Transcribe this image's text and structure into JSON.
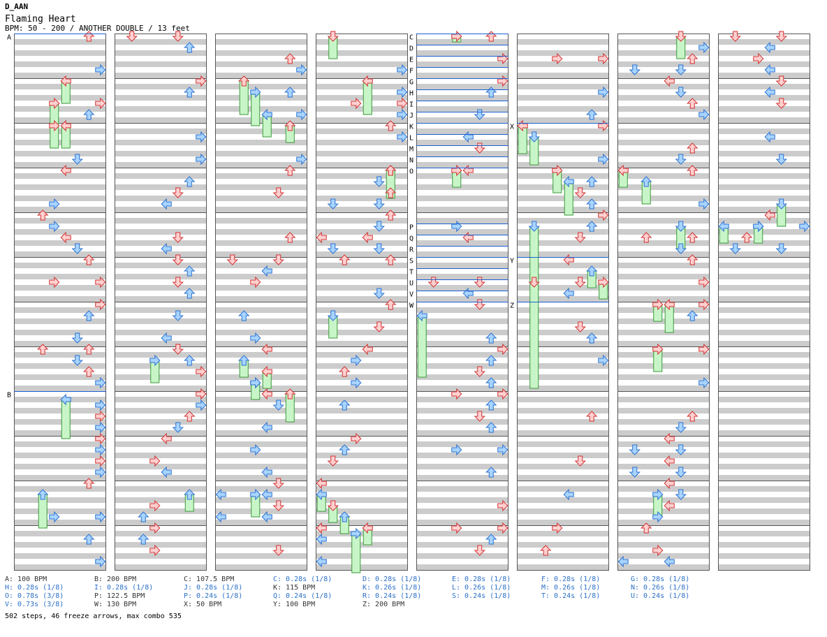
{
  "header": {
    "user": "D_AAN",
    "title": "Flaming Heart",
    "info": "BPM: 50 - 200 / ANOTHER DOUBLE / 13 feet"
  },
  "chart_meta": {
    "columns": 8,
    "measures_per_column": 12,
    "lanes": 8,
    "colors": {
      "red_fill": "#ffd0d0",
      "red_stroke": "#d03030",
      "blue_fill": "#a8d4ff",
      "blue_stroke": "#2a70d0",
      "freeze_fill": "#c8f5c8",
      "freeze_stroke": "#3a9a3a",
      "stripe": "#cccccc",
      "line": "#1a5fd0",
      "pink": "#ff66ff"
    }
  },
  "markers": [
    {
      "label": "A",
      "col": 0,
      "row": 0
    },
    {
      "label": "B",
      "col": 0,
      "row": 64
    },
    {
      "label": "C",
      "col": 4,
      "row": 0,
      "lane": 0
    },
    {
      "label": "D",
      "col": 4,
      "row": 2,
      "lane": 0
    },
    {
      "label": "E",
      "col": 4,
      "row": 4,
      "lane": 0
    },
    {
      "label": "F",
      "col": 4,
      "row": 6,
      "lane": 0
    },
    {
      "label": "G",
      "col": 4,
      "row": 8,
      "lane": 0
    },
    {
      "label": "H",
      "col": 4,
      "row": 10,
      "lane": 0
    },
    {
      "label": "I",
      "col": 4,
      "row": 12,
      "lane": 0
    },
    {
      "label": "J",
      "col": 4,
      "row": 14,
      "lane": 0
    },
    {
      "label": "K",
      "col": 4,
      "row": 16,
      "lane": 0
    },
    {
      "label": "L",
      "col": 4,
      "row": 18,
      "lane": 0
    },
    {
      "label": "M",
      "col": 4,
      "row": 20,
      "lane": 0
    },
    {
      "label": "N",
      "col": 4,
      "row": 22,
      "lane": 0
    },
    {
      "label": "O",
      "col": 4,
      "row": 24,
      "lane": 0
    },
    {
      "label": "P",
      "col": 4,
      "row": 34,
      "lane": 0
    },
    {
      "label": "Q",
      "col": 4,
      "row": 36,
      "lane": 0
    },
    {
      "label": "R",
      "col": 4,
      "row": 38,
      "lane": 0
    },
    {
      "label": "S",
      "col": 4,
      "row": 40,
      "lane": 0
    },
    {
      "label": "T",
      "col": 4,
      "row": 42,
      "lane": 0
    },
    {
      "label": "U",
      "col": 4,
      "row": 44,
      "lane": 0
    },
    {
      "label": "V",
      "col": 4,
      "row": 46,
      "lane": 0
    },
    {
      "label": "W",
      "col": 4,
      "row": 48,
      "lane": 0
    },
    {
      "label": "X",
      "col": 5,
      "row": 16
    },
    {
      "label": "Y",
      "col": 5,
      "row": 40
    },
    {
      "label": "Z",
      "col": 5,
      "row": 48
    }
  ],
  "legend": [
    {
      "text": "A: 100 BPM",
      "kind": "bpm"
    },
    {
      "text": "B: 200 BPM",
      "kind": "bpm"
    },
    {
      "text": "C: 107.5 BPM",
      "kind": "bpm"
    },
    {
      "text": "C: 0.28s (1/8)",
      "kind": "stop"
    },
    {
      "text": "D: 0.28s (1/8)",
      "kind": "stop"
    },
    {
      "text": "E: 0.28s (1/8)",
      "kind": "stop"
    },
    {
      "text": "F: 0.28s (1/8)",
      "kind": "stop"
    },
    {
      "text": "G: 0.28s (1/8)",
      "kind": "stop"
    },
    {
      "text": "H: 0.28s (1/8)",
      "kind": "stop"
    },
    {
      "text": "I: 0.28s (1/8)",
      "kind": "stop"
    },
    {
      "text": "J: 0.28s (1/8)",
      "kind": "stop"
    },
    {
      "text": "K: 115 BPM",
      "kind": "bpm"
    },
    {
      "text": "K: 0.26s (1/8)",
      "kind": "stop"
    },
    {
      "text": "L: 0.26s (1/8)",
      "kind": "stop"
    },
    {
      "text": "M: 0.26s (1/8)",
      "kind": "stop"
    },
    {
      "text": "N: 0.26s (1/8)",
      "kind": "stop"
    },
    {
      "text": "O: 0.78s (3/8)",
      "kind": "stop"
    },
    {
      "text": "P: 122.5 BPM",
      "kind": "bpm"
    },
    {
      "text": "P: 0.24s (1/8)",
      "kind": "stop"
    },
    {
      "text": "Q: 0.24s (1/8)",
      "kind": "stop"
    },
    {
      "text": "R: 0.24s (1/8)",
      "kind": "stop"
    },
    {
      "text": "S: 0.24s (1/8)",
      "kind": "stop"
    },
    {
      "text": "T: 0.24s (1/8)",
      "kind": "stop"
    },
    {
      "text": "U: 0.24s (1/8)",
      "kind": "stop"
    },
    {
      "text": "V: 0.73s (3/8)",
      "kind": "stop"
    },
    {
      "text": "W: 130 BPM",
      "kind": "bpm"
    },
    {
      "text": "X: 50 BPM",
      "kind": "bpm"
    },
    {
      "text": "Y: 100 BPM",
      "kind": "bpm"
    },
    {
      "text": "Z: 200 BPM",
      "kind": "bpm"
    }
  ],
  "summary": "502 steps, 46 freeze arrows, max combo 535",
  "freezes": [
    {
      "col": 0,
      "lane": 4,
      "start": 8,
      "end": 12
    },
    {
      "col": 0,
      "lane": 3,
      "start": 12,
      "end": 16
    },
    {
      "col": 0,
      "lane": 3,
      "start": 16,
      "end": 20
    },
    {
      "col": 0,
      "lane": 4,
      "start": 16,
      "end": 20
    },
    {
      "col": 0,
      "lane": 4,
      "start": 65,
      "end": 72
    },
    {
      "col": 0,
      "lane": 2,
      "start": 82,
      "end": 88
    },
    {
      "col": 1,
      "lane": 3,
      "start": 58,
      "end": 62
    },
    {
      "col": 1,
      "lane": 6,
      "start": 82,
      "end": 85
    },
    {
      "col": 2,
      "lane": 2,
      "start": 8,
      "end": 14
    },
    {
      "col": 2,
      "lane": 3,
      "start": 10,
      "end": 16
    },
    {
      "col": 2,
      "lane": 4,
      "start": 14,
      "end": 18
    },
    {
      "col": 2,
      "lane": 6,
      "start": 16,
      "end": 19
    },
    {
      "col": 2,
      "lane": 2,
      "start": 58,
      "end": 61
    },
    {
      "col": 2,
      "lane": 3,
      "start": 62,
      "end": 65
    },
    {
      "col": 2,
      "lane": 4,
      "start": 60,
      "end": 63
    },
    {
      "col": 2,
      "lane": 6,
      "start": 64,
      "end": 69
    },
    {
      "col": 2,
      "lane": 3,
      "start": 82,
      "end": 86
    },
    {
      "col": 3,
      "lane": 1,
      "start": 0,
      "end": 4
    },
    {
      "col": 3,
      "lane": 4,
      "start": 8,
      "end": 14
    },
    {
      "col": 3,
      "lane": 6,
      "start": 24,
      "end": 29
    },
    {
      "col": 3,
      "lane": 1,
      "start": 50,
      "end": 54
    },
    {
      "col": 3,
      "lane": 0,
      "start": 82,
      "end": 85
    },
    {
      "col": 3,
      "lane": 1,
      "start": 84,
      "end": 87
    },
    {
      "col": 3,
      "lane": 2,
      "start": 86,
      "end": 89
    },
    {
      "col": 3,
      "lane": 3,
      "start": 89,
      "end": 96
    },
    {
      "col": 3,
      "lane": 4,
      "start": 88,
      "end": 91
    },
    {
      "col": 4,
      "lane": 3,
      "start": 0,
      "end": 1
    },
    {
      "col": 4,
      "lane": 0,
      "start": 50,
      "end": 61
    },
    {
      "col": 4,
      "lane": 3,
      "start": 24,
      "end": 27
    },
    {
      "col": 5,
      "lane": 0,
      "start": 16,
      "end": 21
    },
    {
      "col": 5,
      "lane": 1,
      "start": 18,
      "end": 23
    },
    {
      "col": 5,
      "lane": 3,
      "start": 24,
      "end": 28
    },
    {
      "col": 5,
      "lane": 4,
      "start": 26,
      "end": 32
    },
    {
      "col": 5,
      "lane": 6,
      "start": 42,
      "end": 45
    },
    {
      "col": 5,
      "lane": 7,
      "start": 44,
      "end": 47
    },
    {
      "col": 5,
      "lane": 1,
      "start": 34,
      "end": 63
    },
    {
      "col": 6,
      "lane": 0,
      "start": 24,
      "end": 27
    },
    {
      "col": 6,
      "lane": 2,
      "start": 26,
      "end": 30
    },
    {
      "col": 6,
      "lane": 5,
      "start": 0,
      "end": 4
    },
    {
      "col": 6,
      "lane": 5,
      "start": 34,
      "end": 38
    },
    {
      "col": 6,
      "lane": 3,
      "start": 48,
      "end": 51
    },
    {
      "col": 6,
      "lane": 4,
      "start": 48,
      "end": 53
    },
    {
      "col": 6,
      "lane": 3,
      "start": 56,
      "end": 60
    },
    {
      "col": 6,
      "lane": 3,
      "start": 82,
      "end": 86
    },
    {
      "col": 7,
      "lane": 5,
      "start": 30,
      "end": 34
    },
    {
      "col": 7,
      "lane": 0,
      "start": 34,
      "end": 37
    },
    {
      "col": 7,
      "lane": 3,
      "start": 34,
      "end": 37
    }
  ]
}
